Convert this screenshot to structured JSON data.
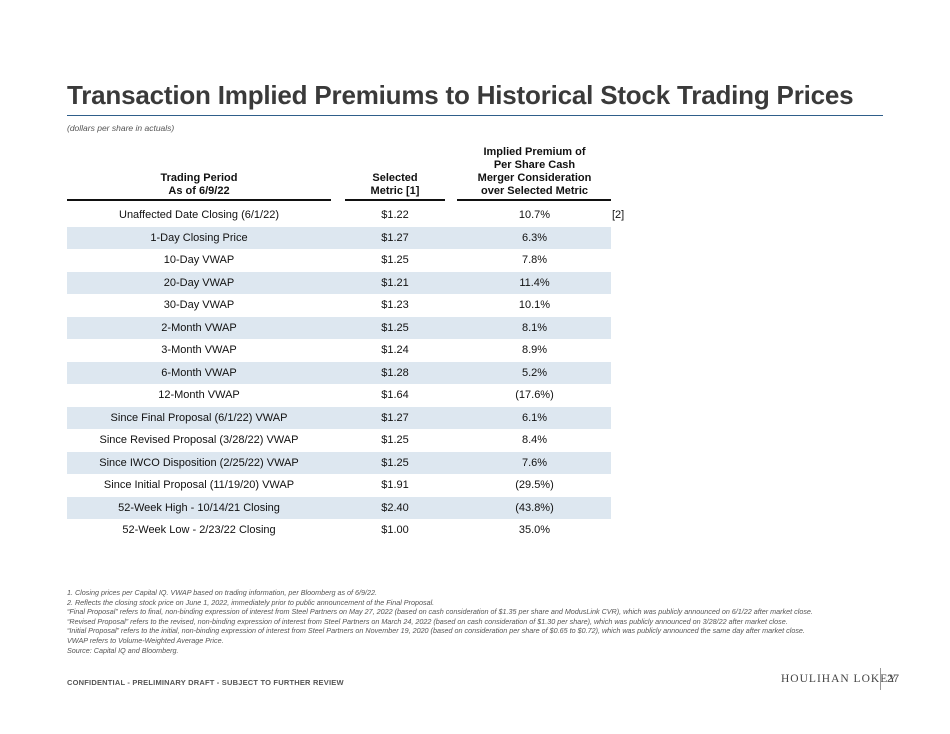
{
  "title": "Transaction Implied Premiums to Historical Stock Trading Prices",
  "subtitle": "(dollars per share in actuals)",
  "headers": {
    "col1_line1": "Trading Period",
    "col1_line2": "As of 6/9/22",
    "col2_line1": "Selected",
    "col2_line2": "Metric [1]",
    "col3_line1": "Implied Premium of",
    "col3_line2": "Per Share Cash",
    "col3_line3": "Merger Consideration",
    "col3_line4": "over Selected Metric"
  },
  "rows": [
    {
      "period": "Unaffected Date Closing (6/1/22)",
      "metric": "$1.22",
      "premium": "10.7%",
      "note": "[2]"
    },
    {
      "period": "1-Day Closing Price",
      "metric": "$1.27",
      "premium": "6.3%",
      "note": ""
    },
    {
      "period": "10-Day VWAP",
      "metric": "$1.25",
      "premium": "7.8%",
      "note": ""
    },
    {
      "period": "20-Day VWAP",
      "metric": "$1.21",
      "premium": "11.4%",
      "note": ""
    },
    {
      "period": "30-Day VWAP",
      "metric": "$1.23",
      "premium": "10.1%",
      "note": ""
    },
    {
      "period": "2-Month VWAP",
      "metric": "$1.25",
      "premium": "8.1%",
      "note": ""
    },
    {
      "period": "3-Month VWAP",
      "metric": "$1.24",
      "premium": "8.9%",
      "note": ""
    },
    {
      "period": "6-Month VWAP",
      "metric": "$1.28",
      "premium": "5.2%",
      "note": ""
    },
    {
      "period": "12-Month VWAP",
      "metric": "$1.64",
      "premium": "(17.6%)",
      "note": ""
    },
    {
      "period": "Since Final Proposal (6/1/22) VWAP",
      "metric": "$1.27",
      "premium": "6.1%",
      "note": ""
    },
    {
      "period": "Since Revised Proposal (3/28/22) VWAP",
      "metric": "$1.25",
      "premium": "8.4%",
      "note": ""
    },
    {
      "period": "Since IWCO Disposition (2/25/22) VWAP",
      "metric": "$1.25",
      "premium": "7.6%",
      "note": ""
    },
    {
      "period": "Since Initial Proposal (11/19/20) VWAP",
      "metric": "$1.91",
      "premium": "(29.5%)",
      "note": ""
    },
    {
      "period": "52-Week High - 10/14/21 Closing",
      "metric": "$2.40",
      "premium": "(43.8%)",
      "note": ""
    },
    {
      "period": "52-Week Low - 2/23/22 Closing",
      "metric": "$1.00",
      "premium": "35.0%",
      "note": ""
    }
  ],
  "footnotes": [
    "1. Closing prices per Capital IQ. VWAP based on trading information, per Bloomberg as of 6/9/22.",
    "2. Reflects the closing stock price on June 1, 2022, immediately prior to public announcement of the Final Proposal.",
    "“Final Proposal” refers to final, non-binding expression of interest from Steel Partners on May 27, 2022 (based on cash consideration of $1.35 per share and ModusLink CVR), which was publicly announced on 6/1/22 after market close.",
    "“Revised Proposal” refers to the revised, non-binding expression of interest from Steel Partners on March 24, 2022 (based on cash consideration of $1.30 per share), which was publicly announced on 3/28/22 after market close.",
    "“Initial Proposal” refers to the initial, non-binding expression of interest from Steel Partners on November 19, 2020 (based on consideration per share of $0.65 to $0.72), which was publicly announced the same day after market close.",
    "VWAP refers to Volume-Weighted Average Price.",
    "Source: Capital IQ and Bloomberg."
  ],
  "confidential": "CONFIDENTIAL - PRELIMINARY DRAFT - SUBJECT TO FURTHER REVIEW",
  "logo": "HOULIHAN LOKEY",
  "page_number": "27",
  "colors": {
    "shade": "#dde7f0",
    "title_rule": "#2f5e8a",
    "title": "#3a3a3a"
  }
}
